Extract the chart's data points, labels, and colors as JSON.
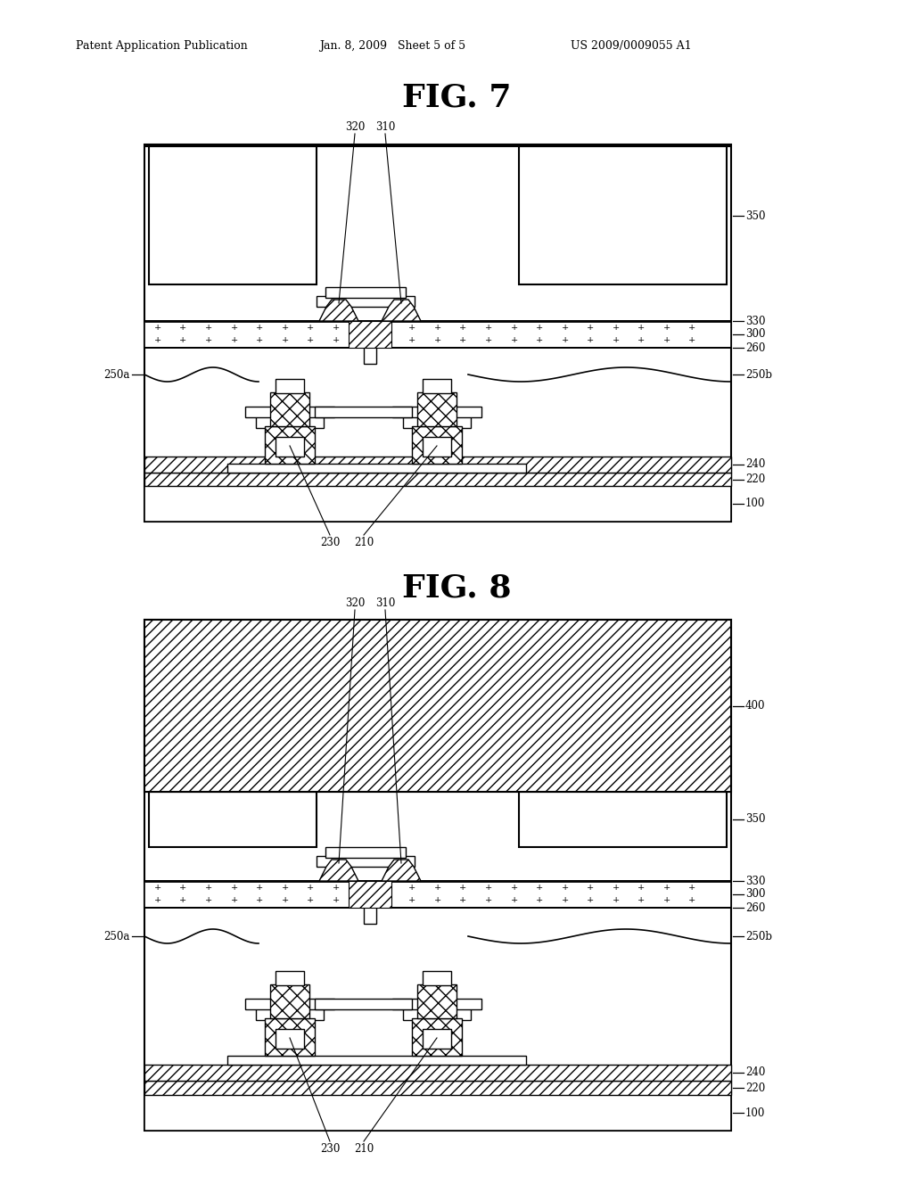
{
  "header_left": "Patent Application Publication",
  "header_mid": "Jan. 8, 2009   Sheet 5 of 5",
  "header_right": "US 2009/0009055 A1",
  "fig7_title": "FIG. 7",
  "fig8_title": "FIG. 8",
  "bg_color": "#ffffff"
}
